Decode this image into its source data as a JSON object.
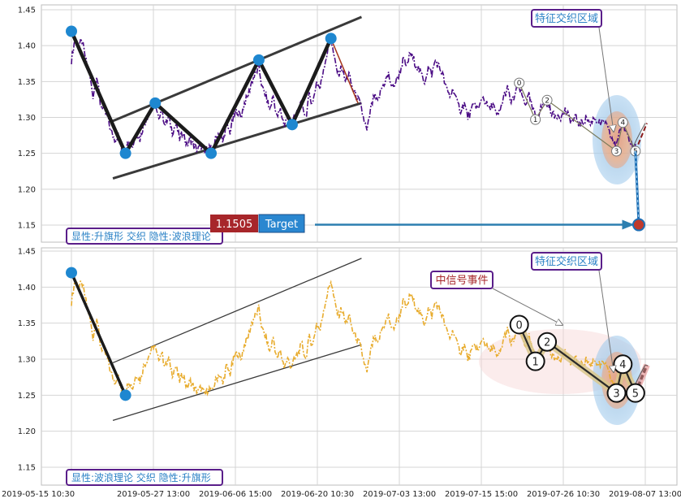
{
  "chart_data": [
    {
      "type": "line",
      "panel": "top",
      "y_ticks": [
        "1.45",
        "1.40",
        "1.35",
        "1.30",
        "1.25",
        "1.20",
        "1.15"
      ],
      "ylim": [
        1.125,
        1.455
      ],
      "x_ticks": [
        "2019-05-15 10:30",
        "2019-05-27 13:00",
        "2019-06-06 15:00",
        "2019-06-20 10:30",
        "2019-07-03 13:00",
        "2019-07-15 15:00",
        "2019-07-26 10:30",
        "2019-08-07 13:00"
      ],
      "series_color": "#4b0c85",
      "pattern_points": [
        [
          0,
          1.42
        ],
        [
          60,
          1.25
        ],
        [
          93,
          1.32
        ],
        [
          155,
          1.25
        ],
        [
          208,
          1.38
        ],
        [
          245,
          1.29
        ],
        [
          288,
          1.41
        ]
      ],
      "channel_upper": [
        [
          46,
          1.295
        ],
        [
          322,
          1.44
        ]
      ],
      "channel_lower": [
        [
          46,
          1.215
        ],
        [
          322,
          1.32
        ]
      ],
      "waves": [
        {
          "label": "0",
          "x": 497,
          "y": 1.348
        },
        {
          "label": "1",
          "x": 515,
          "y": 1.297
        },
        {
          "label": "2",
          "x": 528,
          "y": 1.324
        },
        {
          "label": "3",
          "x": 605,
          "y": 1.253
        },
        {
          "label": "4",
          "x": 612,
          "y": 1.293
        },
        {
          "label": "5",
          "x": 626,
          "y": 1.253
        }
      ],
      "target_value": "1.1505",
      "target_label": "Target",
      "zone_label": "特征交织区域",
      "legend": "显性:升旗形 交织 隐性:波浪理论"
    },
    {
      "type": "line",
      "panel": "bottom",
      "y_ticks": [
        "1.45",
        "1.40",
        "1.35",
        "1.30",
        "1.25",
        "1.20",
        "1.15"
      ],
      "ylim": [
        1.125,
        1.455
      ],
      "x_ticks": [
        "2019-05-15 10:30",
        "2019-05-27 13:00",
        "2019-06-06 15:00",
        "2019-06-20 10:30",
        "2019-07-03 13:00",
        "2019-07-15 15:00",
        "2019-07-26 10:30",
        "2019-08-07 13:00"
      ],
      "series_color": "#e8ac2e",
      "pattern_points": [
        [
          0,
          1.42
        ],
        [
          60,
          1.25
        ]
      ],
      "channel_upper": [
        [
          46,
          1.295
        ],
        [
          322,
          1.44
        ]
      ],
      "channel_lower": [
        [
          46,
          1.215
        ],
        [
          322,
          1.32
        ]
      ],
      "waves": [
        {
          "label": "0",
          "x": 497,
          "y": 1.348
        },
        {
          "label": "1",
          "x": 515,
          "y": 1.297
        },
        {
          "label": "2",
          "x": 528,
          "y": 1.324
        },
        {
          "label": "3",
          "x": 605,
          "y": 1.253
        },
        {
          "label": "4",
          "x": 612,
          "y": 1.293
        },
        {
          "label": "5",
          "x": 626,
          "y": 1.253
        }
      ],
      "zone_label": "特征交织区域",
      "signal_label": "中信号事件",
      "legend": "显性:波浪理论 交织 隐性:升旗形"
    }
  ],
  "price_trace": [
    [
      0,
      1.38
    ],
    [
      4,
      1.41
    ],
    [
      8,
      1.4
    ],
    [
      12,
      1.405
    ],
    [
      16,
      1.38
    ],
    [
      20,
      1.36
    ],
    [
      24,
      1.33
    ],
    [
      28,
      1.36
    ],
    [
      32,
      1.32
    ],
    [
      36,
      1.31
    ],
    [
      40,
      1.3
    ],
    [
      44,
      1.28
    ],
    [
      48,
      1.27
    ],
    [
      52,
      1.275
    ],
    [
      56,
      1.25
    ],
    [
      60,
      1.255
    ],
    [
      64,
      1.27
    ],
    [
      68,
      1.26
    ],
    [
      72,
      1.28
    ],
    [
      76,
      1.27
    ],
    [
      80,
      1.29
    ],
    [
      84,
      1.3
    ],
    [
      88,
      1.31
    ],
    [
      92,
      1.32
    ],
    [
      96,
      1.3
    ],
    [
      100,
      1.31
    ],
    [
      104,
      1.29
    ],
    [
      108,
      1.3
    ],
    [
      112,
      1.28
    ],
    [
      116,
      1.29
    ],
    [
      120,
      1.27
    ],
    [
      124,
      1.28
    ],
    [
      128,
      1.26
    ],
    [
      132,
      1.27
    ],
    [
      136,
      1.26
    ],
    [
      140,
      1.255
    ],
    [
      144,
      1.26
    ],
    [
      148,
      1.25
    ],
    [
      152,
      1.26
    ],
    [
      156,
      1.255
    ],
    [
      160,
      1.27
    ],
    [
      164,
      1.28
    ],
    [
      168,
      1.265
    ],
    [
      172,
      1.29
    ],
    [
      176,
      1.28
    ],
    [
      180,
      1.3
    ],
    [
      184,
      1.31
    ],
    [
      188,
      1.3
    ],
    [
      192,
      1.32
    ],
    [
      196,
      1.33
    ],
    [
      200,
      1.35
    ],
    [
      204,
      1.36
    ],
    [
      208,
      1.37
    ],
    [
      212,
      1.34
    ],
    [
      216,
      1.33
    ],
    [
      220,
      1.31
    ],
    [
      224,
      1.33
    ],
    [
      228,
      1.3
    ],
    [
      232,
      1.31
    ],
    [
      236,
      1.29
    ],
    [
      240,
      1.3
    ],
    [
      244,
      1.29
    ],
    [
      248,
      1.3
    ],
    [
      252,
      1.31
    ],
    [
      256,
      1.32
    ],
    [
      260,
      1.3
    ],
    [
      264,
      1.33
    ],
    [
      268,
      1.32
    ],
    [
      272,
      1.35
    ],
    [
      276,
      1.34
    ],
    [
      280,
      1.37
    ],
    [
      284,
      1.39
    ],
    [
      288,
      1.41
    ],
    [
      292,
      1.38
    ],
    [
      296,
      1.36
    ],
    [
      300,
      1.37
    ],
    [
      304,
      1.35
    ],
    [
      308,
      1.36
    ],
    [
      312,
      1.34
    ],
    [
      316,
      1.33
    ],
    [
      320,
      1.32
    ],
    [
      324,
      1.3
    ],
    [
      328,
      1.28
    ],
    [
      332,
      1.31
    ],
    [
      336,
      1.33
    ],
    [
      340,
      1.32
    ],
    [
      344,
      1.34
    ],
    [
      348,
      1.35
    ],
    [
      352,
      1.36
    ],
    [
      356,
      1.34
    ],
    [
      360,
      1.35
    ],
    [
      364,
      1.36
    ],
    [
      368,
      1.38
    ],
    [
      372,
      1.37
    ],
    [
      376,
      1.39
    ],
    [
      380,
      1.38
    ],
    [
      384,
      1.37
    ],
    [
      388,
      1.36
    ],
    [
      392,
      1.35
    ],
    [
      396,
      1.37
    ],
    [
      400,
      1.36
    ],
    [
      404,
      1.38
    ],
    [
      408,
      1.37
    ],
    [
      412,
      1.36
    ],
    [
      416,
      1.34
    ],
    [
      420,
      1.33
    ],
    [
      424,
      1.34
    ],
    [
      428,
      1.32
    ],
    [
      432,
      1.31
    ],
    [
      436,
      1.32
    ],
    [
      440,
      1.3
    ],
    [
      444,
      1.31
    ],
    [
      448,
      1.32
    ],
    [
      452,
      1.31
    ],
    [
      456,
      1.33
    ],
    [
      460,
      1.32
    ],
    [
      464,
      1.31
    ],
    [
      468,
      1.32
    ],
    [
      472,
      1.3
    ],
    [
      476,
      1.31
    ],
    [
      480,
      1.33
    ],
    [
      484,
      1.34
    ],
    [
      488,
      1.32
    ],
    [
      492,
      1.33
    ],
    [
      496,
      1.345
    ],
    [
      500,
      1.33
    ],
    [
      504,
      1.32
    ],
    [
      508,
      1.33
    ],
    [
      512,
      1.31
    ],
    [
      516,
      1.3
    ],
    [
      520,
      1.31
    ],
    [
      524,
      1.32
    ],
    [
      528,
      1.32
    ],
    [
      532,
      1.31
    ],
    [
      536,
      1.3
    ],
    [
      540,
      1.305
    ],
    [
      544,
      1.3
    ],
    [
      548,
      1.31
    ],
    [
      552,
      1.3
    ],
    [
      556,
      1.295
    ],
    [
      560,
      1.3
    ],
    [
      564,
      1.29
    ],
    [
      568,
      1.295
    ],
    [
      572,
      1.3
    ],
    [
      576,
      1.29
    ],
    [
      580,
      1.3
    ],
    [
      584,
      1.295
    ],
    [
      588,
      1.29
    ],
    [
      592,
      1.295
    ],
    [
      596,
      1.28
    ],
    [
      600,
      1.27
    ],
    [
      604,
      1.26
    ],
    [
      608,
      1.28
    ],
    [
      612,
      1.29
    ],
    [
      616,
      1.28
    ],
    [
      620,
      1.27
    ],
    [
      624,
      1.26
    ],
    [
      628,
      1.255
    ]
  ]
}
